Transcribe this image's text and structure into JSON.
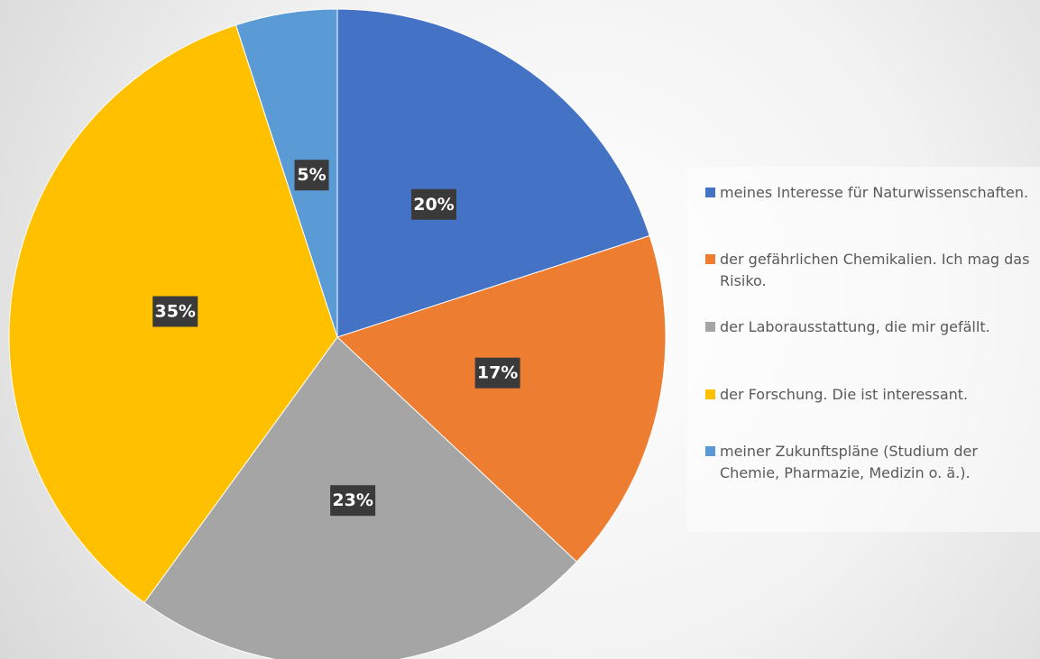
{
  "chart_data": {
    "type": "pie",
    "categories": [
      "meines Interesse für Naturwissenschaften.",
      "der gefährlichen Chemikalien. Ich mag das Risiko.",
      " der Laborausstattung, die mir gefällt.",
      "der Forschung. Die ist interessant.",
      "meiner Zukunftspläne (Studium der Chemie, Pharmazie, Medizin o. ä.)."
    ],
    "values": [
      20,
      17,
      23,
      35,
      5
    ],
    "value_labels": [
      "20%",
      "17%",
      "23%",
      "35%",
      "5%"
    ],
    "colors": [
      "#4472c4",
      "#ed7d31",
      "#a5a5a5",
      "#ffc000",
      "#5b9bd5"
    ],
    "legend": "right"
  }
}
